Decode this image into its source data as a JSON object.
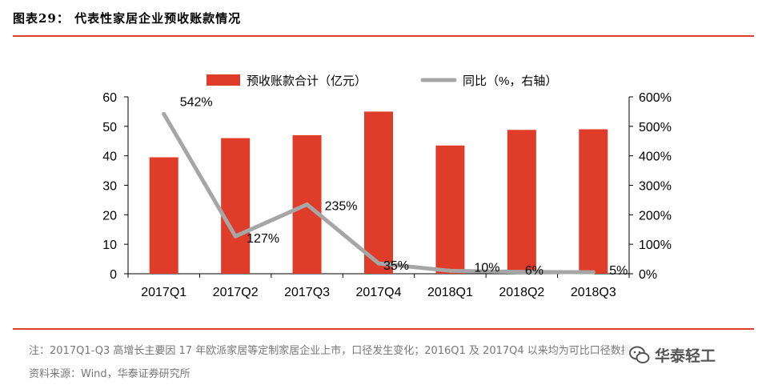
{
  "figure_title": "图表29：   代表性家居企业预收账款情况",
  "notes": {
    "note": "注：2017Q1-Q3 高增长主要因 17 年欧派家居等定制家居企业上市，口径发生变化；2016Q1 及 2017Q4 以来均为可比口径数据",
    "source": "资料来源：Wind，华泰证券研究所"
  },
  "watermark": {
    "text": "华泰轻工",
    "icon": "wechat-icon"
  },
  "colors": {
    "bar": "#e03c2a",
    "line": "#a6a6a6",
    "accent": "#e03c2a"
  },
  "chart_data": {
    "type": "bar",
    "categories": [
      "2017Q1",
      "2017Q2",
      "2017Q3",
      "2017Q4",
      "2018Q1",
      "2018Q2",
      "2018Q3"
    ],
    "series": [
      {
        "name": "预收账款合计（亿元）",
        "type": "bar",
        "axis": "left",
        "values": [
          39.5,
          46,
          47,
          55,
          43.5,
          48.8,
          49
        ]
      },
      {
        "name": "同比（%，右轴）",
        "type": "line",
        "axis": "right",
        "values": [
          542,
          127,
          235,
          35,
          10,
          6,
          5
        ],
        "labels": [
          "542%",
          "127%",
          "235%",
          "35%",
          "10%",
          "6%",
          "5%"
        ]
      }
    ],
    "y_left": {
      "min": 0,
      "max": 60,
      "ticks": [
        0,
        10,
        20,
        30,
        40,
        50,
        60
      ],
      "tick_labels": [
        "0",
        "10",
        "20",
        "30",
        "40",
        "50",
        "60"
      ]
    },
    "y_right": {
      "min": 0,
      "max": 600,
      "ticks": [
        0,
        100,
        200,
        300,
        400,
        500,
        600
      ],
      "tick_labels": [
        "0%",
        "100%",
        "200%",
        "300%",
        "400%",
        "500%",
        "600%"
      ]
    },
    "legend": [
      "预收账款合计（亿元）",
      "同比（%，右轴）"
    ],
    "legend_position": "top"
  }
}
